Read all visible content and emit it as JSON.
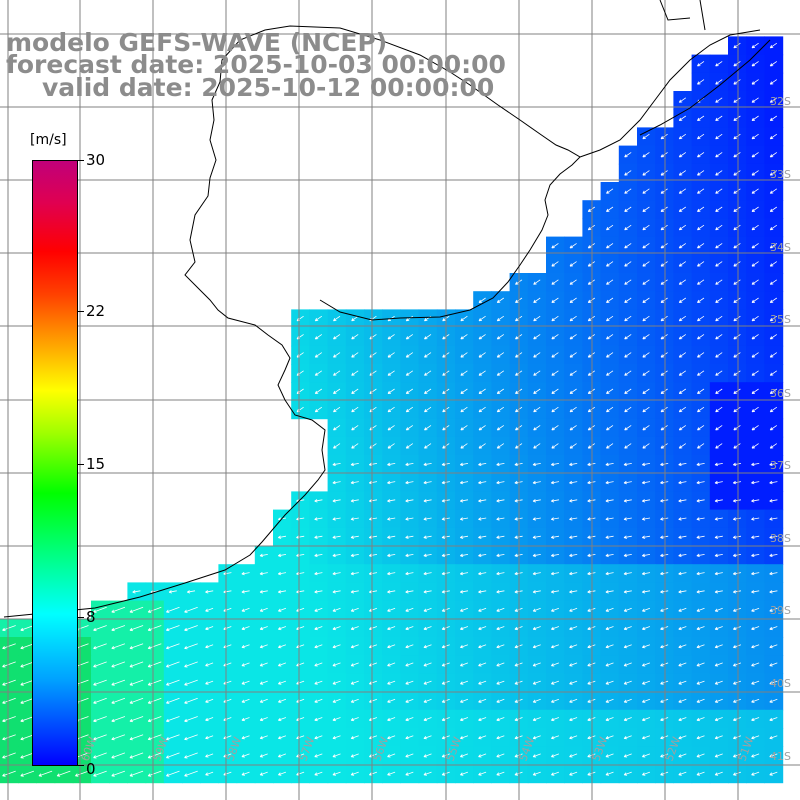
{
  "title": {
    "line1": "modelo GEFS-WAVE (NCEP)",
    "line2": "forecast date: 2025-10-03 00:00:00",
    "line3": "valid date: 2025-10-12 00:00:00"
  },
  "colorbar": {
    "unit": "[m/s]",
    "ticks": [
      "30",
      "22",
      "15",
      "8",
      "0"
    ],
    "tick_values": [
      30,
      22,
      15,
      8,
      0
    ],
    "min": 0,
    "max": 30
  },
  "map": {
    "lat_labels": [
      "32S",
      "33S",
      "34S",
      "35S",
      "36S",
      "37S",
      "38S",
      "39S",
      "40S",
      "41S"
    ],
    "lon_labels": [
      "60W",
      "59W",
      "58W",
      "57W",
      "56W",
      "55W",
      "54W",
      "53W",
      "52W",
      "51W"
    ],
    "land_color": "#ffffff",
    "grid_color": "#808080",
    "arrow_color": "#ffffff"
  }
}
